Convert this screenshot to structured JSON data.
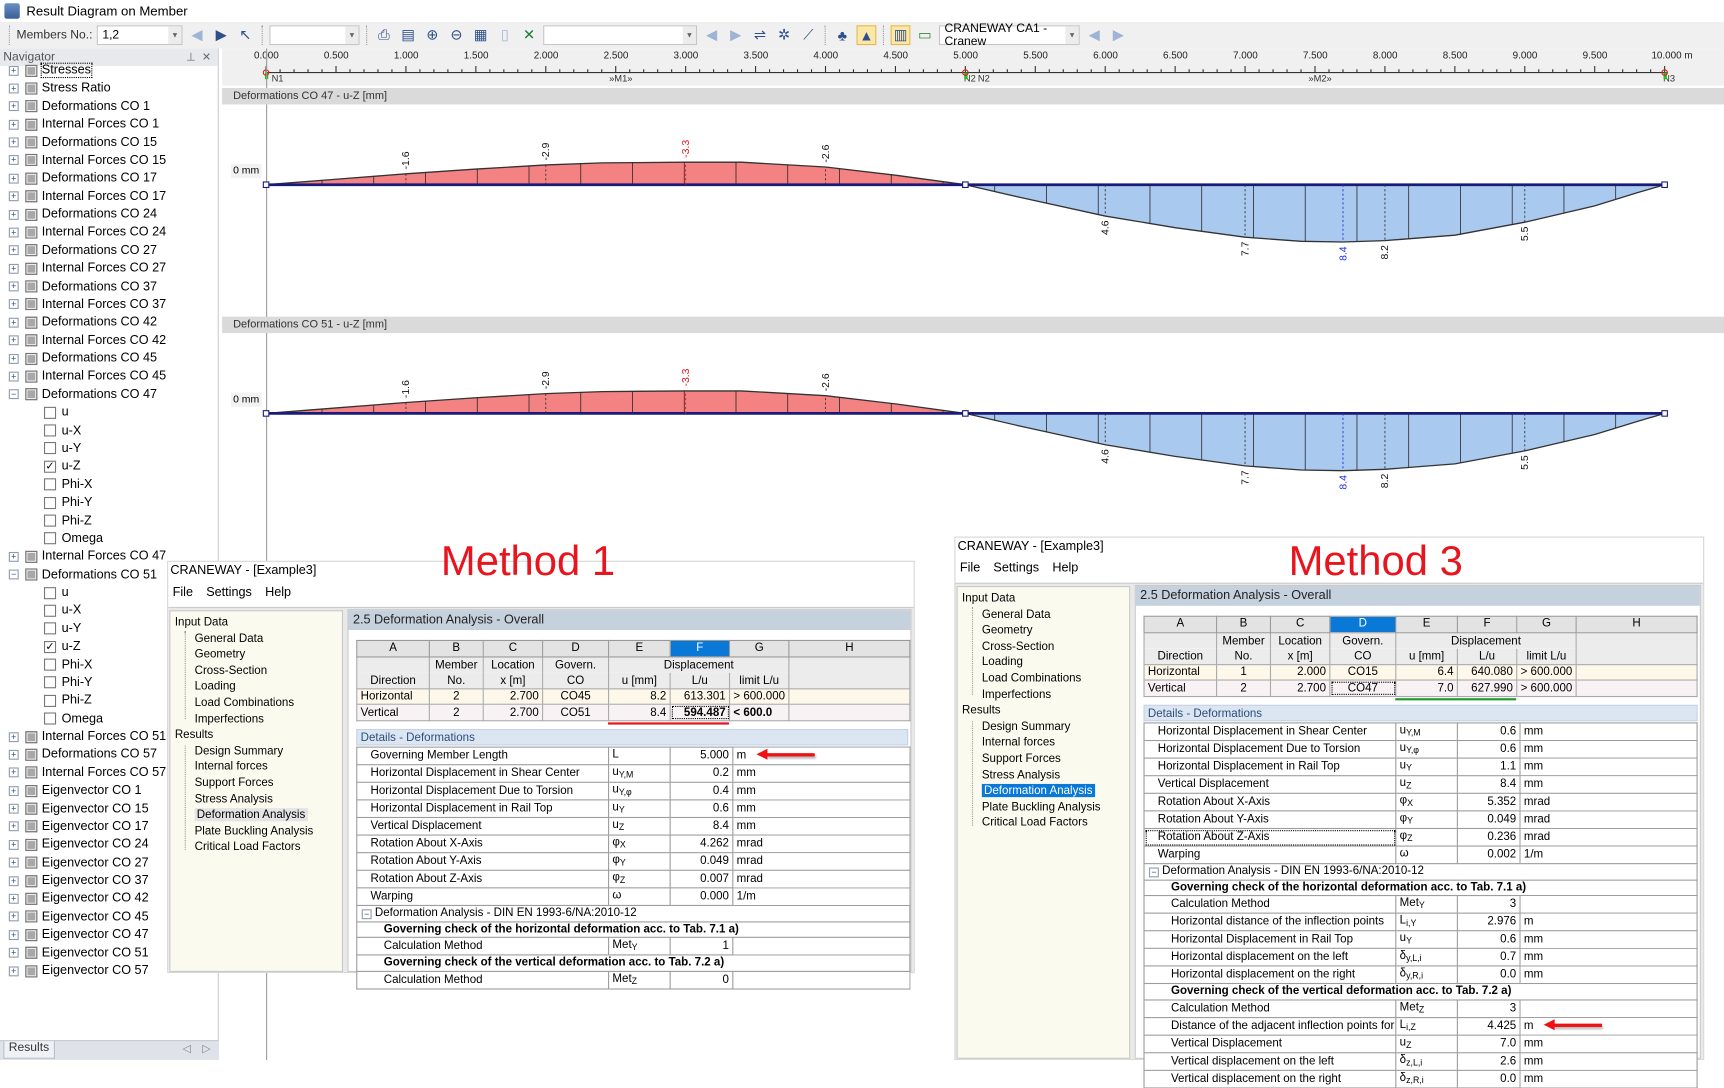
{
  "window": {
    "title": "Result Diagram on Member"
  },
  "toolbar": {
    "members_label": "Members No.:",
    "members_value": "1,2",
    "combo_2_value": "",
    "combo_3_value": "",
    "craneway_combo": "CRANEWAY CA1 - Cranew"
  },
  "navigator": {
    "title": "Navigator",
    "bottom_tab": "Results",
    "items": [
      {
        "label": "Stresses",
        "level": 0,
        "exp": "+"
      },
      {
        "label": "Stress Ratio",
        "level": 0,
        "exp": "+"
      },
      {
        "label": "Deformations CO 1",
        "level": 0,
        "exp": "+"
      },
      {
        "label": "Internal Forces CO 1",
        "level": 0,
        "exp": "+"
      },
      {
        "label": "Deformations CO 15",
        "level": 0,
        "exp": "+"
      },
      {
        "label": "Internal Forces CO 15",
        "level": 0,
        "exp": "+"
      },
      {
        "label": "Deformations CO 17",
        "level": 0,
        "exp": "+"
      },
      {
        "label": "Internal Forces CO 17",
        "level": 0,
        "exp": "+"
      },
      {
        "label": "Deformations CO 24",
        "level": 0,
        "exp": "+"
      },
      {
        "label": "Internal Forces CO 24",
        "level": 0,
        "exp": "+"
      },
      {
        "label": "Deformations CO 27",
        "level": 0,
        "exp": "+"
      },
      {
        "label": "Internal Forces CO 27",
        "level": 0,
        "exp": "+"
      },
      {
        "label": "Deformations CO 37",
        "level": 0,
        "exp": "+"
      },
      {
        "label": "Internal Forces CO 37",
        "level": 0,
        "exp": "+"
      },
      {
        "label": "Deformations CO 42",
        "level": 0,
        "exp": "+"
      },
      {
        "label": "Internal Forces CO 42",
        "level": 0,
        "exp": "+"
      },
      {
        "label": "Deformations CO 45",
        "level": 0,
        "exp": "+"
      },
      {
        "label": "Internal Forces CO 45",
        "level": 0,
        "exp": "+"
      },
      {
        "label": "Deformations CO 47",
        "level": 0,
        "exp": "−"
      },
      {
        "label": "u",
        "level": 1,
        "checked": false
      },
      {
        "label": "u-X",
        "level": 1,
        "checked": false
      },
      {
        "label": "u-Y",
        "level": 1,
        "checked": false
      },
      {
        "label": "u-Z",
        "level": 1,
        "checked": true
      },
      {
        "label": "Phi-X",
        "level": 1,
        "checked": false
      },
      {
        "label": "Phi-Y",
        "level": 1,
        "checked": false
      },
      {
        "label": "Phi-Z",
        "level": 1,
        "checked": false
      },
      {
        "label": "Omega",
        "level": 1,
        "checked": false
      },
      {
        "label": "Internal Forces CO 47",
        "level": 0,
        "exp": "+"
      },
      {
        "label": "Deformations CO 51",
        "level": 0,
        "exp": "−"
      },
      {
        "label": "u",
        "level": 1,
        "checked": false
      },
      {
        "label": "u-X",
        "level": 1,
        "checked": false
      },
      {
        "label": "u-Y",
        "level": 1,
        "checked": false
      },
      {
        "label": "u-Z",
        "level": 1,
        "checked": true
      },
      {
        "label": "Phi-X",
        "level": 1,
        "checked": false
      },
      {
        "label": "Phi-Y",
        "level": 1,
        "checked": false
      },
      {
        "label": "Phi-Z",
        "level": 1,
        "checked": false
      },
      {
        "label": "Omega",
        "level": 1,
        "checked": false
      },
      {
        "label": "Internal Forces CO 51",
        "level": 0,
        "exp": "+"
      },
      {
        "label": "Deformations CO 57",
        "level": 0,
        "exp": "+"
      },
      {
        "label": "Internal Forces CO 57",
        "level": 0,
        "exp": "+"
      },
      {
        "label": "Eigenvector CO 1",
        "level": 0,
        "exp": "+"
      },
      {
        "label": "Eigenvector CO 15",
        "level": 0,
        "exp": "+"
      },
      {
        "label": "Eigenvector CO 17",
        "level": 0,
        "exp": "+"
      },
      {
        "label": "Eigenvector CO 24",
        "level": 0,
        "exp": "+"
      },
      {
        "label": "Eigenvector CO 27",
        "level": 0,
        "exp": "+"
      },
      {
        "label": "Eigenvector CO 37",
        "level": 0,
        "exp": "+"
      },
      {
        "label": "Eigenvector CO 42",
        "level": 0,
        "exp": "+"
      },
      {
        "label": "Eigenvector CO 45",
        "level": 0,
        "exp": "+"
      },
      {
        "label": "Eigenvector CO 47",
        "level": 0,
        "exp": "+"
      },
      {
        "label": "Eigenvector CO 51",
        "level": 0,
        "exp": "+"
      },
      {
        "label": "Eigenvector CO 57",
        "level": 0,
        "exp": "+"
      }
    ]
  },
  "ruler": {
    "ticks": [
      "0.000",
      "0.500",
      "1.000",
      "1.500",
      "2.000",
      "2.500",
      "3.000",
      "3.500",
      "4.000",
      "4.500",
      "5.000",
      "5.500",
      "6.000",
      "6.500",
      "7.000",
      "7.500",
      "8.000",
      "8.500",
      "9.000",
      "9.500",
      "10.000 m"
    ],
    "nodes": [
      {
        "label": "N1",
        "x": 0
      },
      {
        "label": "»M1»",
        "x": 2.5
      },
      {
        "label": "N2",
        "x": 4.95
      },
      {
        "label": "N2",
        "x": 5.05
      },
      {
        "label": "»M2»",
        "x": 7.5
      },
      {
        "label": "N3",
        "x": 9.95
      }
    ]
  },
  "diagrams": [
    {
      "title": "Deformations CO 47 - u-Z [mm]",
      "zero_label": "0 mm"
    },
    {
      "title": "Deformations CO 51 - u-Z [mm]",
      "zero_label": "0 mm"
    }
  ],
  "diagram_curve": {
    "x_unit": "m",
    "points": [
      [
        0,
        0
      ],
      [
        0.5,
        -0.8
      ],
      [
        1,
        -1.6
      ],
      [
        1.5,
        -2.3
      ],
      [
        2,
        -2.9
      ],
      [
        2.4,
        -3.2
      ],
      [
        3,
        -3.3
      ],
      [
        3.4,
        -3.3
      ],
      [
        4,
        -2.6
      ],
      [
        4.5,
        -1.4
      ],
      [
        5,
        0
      ],
      [
        5.4,
        1.9
      ],
      [
        6,
        4.6
      ],
      [
        6.5,
        6.3
      ],
      [
        7,
        7.7
      ],
      [
        7.4,
        8.3
      ],
      [
        7.7,
        8.4
      ],
      [
        8,
        8.2
      ],
      [
        8.5,
        7.4
      ],
      [
        9,
        5.5
      ],
      [
        9.5,
        3.1
      ],
      [
        9.8,
        1.2
      ],
      [
        10,
        0
      ]
    ],
    "labels": [
      {
        "x": 1,
        "value": "-1.6"
      },
      {
        "x": 2,
        "value": "-2.9"
      },
      {
        "x": 3,
        "value": "-3.3"
      },
      {
        "x": 4,
        "value": "-2.6"
      },
      {
        "x": 6,
        "value": "4.6"
      },
      {
        "x": 7,
        "value": "7.7"
      },
      {
        "x": 7.7,
        "value": "8.4"
      },
      {
        "x": 8,
        "value": "8.2"
      },
      {
        "x": 9,
        "value": "5.5"
      }
    ],
    "colors": {
      "negative_fill": "#f48282",
      "positive_fill": "#a9c9ee",
      "member_line": "#1a1a7a",
      "min_label": "#e8141e",
      "max_label": "#1a2ee0"
    }
  },
  "annotations": {
    "method1": "Method 1",
    "method3": "Method 3",
    "method1_underline": "#e8141e",
    "method3_underline": "#1f9a2e"
  },
  "windows": [
    {
      "title": "CRANEWAY - [Example3]",
      "menu": [
        "File",
        "Settings",
        "Help"
      ],
      "tree": [
        {
          "label": "Input Data",
          "level": 0
        },
        {
          "label": "General Data",
          "level": 1
        },
        {
          "label": "Geometry",
          "level": 1
        },
        {
          "label": "Cross-Section",
          "level": 1
        },
        {
          "label": "Loading",
          "level": 1
        },
        {
          "label": "Load Combinations",
          "level": 1
        },
        {
          "label": "Imperfections",
          "level": 1
        },
        {
          "label": "Results",
          "level": 0
        },
        {
          "label": "Design Summary",
          "level": 1
        },
        {
          "label": "Internal forces",
          "level": 1
        },
        {
          "label": "Support Forces",
          "level": 1
        },
        {
          "label": "Stress Analysis",
          "level": 1
        },
        {
          "label": "Deformation Analysis",
          "level": 1,
          "state": "hl"
        },
        {
          "label": "Plate Buckling Analysis",
          "level": 1
        },
        {
          "label": "Critical Load Factors",
          "level": 1
        }
      ],
      "panel_title": "2.5 Deformation Analysis - Overall",
      "columns": [
        "A",
        "B",
        "C",
        "D",
        "E",
        "F",
        "G",
        "H"
      ],
      "selected_column": "F",
      "headers": {
        "direction": "Direction",
        "member_1": "Member",
        "member_2": "No.",
        "loc_1": "Location",
        "loc_2": "x [m]",
        "co_1": "Govern.",
        "co_2": "CO",
        "disp": "Displacement",
        "u": "u [mm]",
        "lu": "L/u",
        "limit": "limit L/u"
      },
      "rows": [
        {
          "direction": "Horizontal",
          "member": "2",
          "x": "2.700",
          "co": "CO45",
          "u": "8.2",
          "lu": "613.301",
          "limit": "> 600.000"
        },
        {
          "direction": "Vertical",
          "member": "2",
          "x": "2.700",
          "co": "CO51",
          "u": "8.4",
          "lu": "594.487",
          "limit": "< 600.0",
          "bold": true,
          "focus": "lu"
        }
      ],
      "details_title": "Details - Deformations",
      "details": [
        {
          "type": "row",
          "name": "Governing Member Length",
          "sym": "L",
          "sub": "",
          "value": "5.000",
          "unit": "m",
          "arrow": true
        },
        {
          "type": "row",
          "name": "Horizontal Displacement in Shear Center",
          "sym": "u",
          "sub": "Y,M",
          "value": "0.2",
          "unit": "mm"
        },
        {
          "type": "row",
          "name": "Horizontal Displacement Due to Torsion",
          "sym": "u",
          "sub": "Y,φ",
          "value": "0.4",
          "unit": "mm"
        },
        {
          "type": "row",
          "name": "Horizontal Displacement in Rail Top",
          "sym": "u",
          "sub": "Y",
          "value": "0.6",
          "unit": "mm"
        },
        {
          "type": "row",
          "name": "Vertical Displacement",
          "sym": "u",
          "sub": "Z",
          "value": "8.4",
          "unit": "mm"
        },
        {
          "type": "row",
          "name": "Rotation About X-Axis",
          "sym": "φ",
          "sub": "X",
          "value": "4.262",
          "unit": "mrad"
        },
        {
          "type": "row",
          "name": "Rotation About Y-Axis",
          "sym": "φ",
          "sub": "Y",
          "value": "0.049",
          "unit": "mrad"
        },
        {
          "type": "row",
          "name": "Rotation About Z-Axis",
          "sym": "φ",
          "sub": "Z",
          "value": "0.007",
          "unit": "mrad"
        },
        {
          "type": "row",
          "name": "Warping",
          "sym": "ω",
          "sub": "",
          "value": "0.000",
          "unit": "1/m"
        },
        {
          "type": "group",
          "name": "Deformation Analysis - DIN EN 1993-6/NA:2010-12"
        },
        {
          "type": "heading",
          "name": "Governing check of the horizontal deformation acc. to Tab. 7.1 a)"
        },
        {
          "type": "sub",
          "name": "Calculation Method",
          "sym": "Met",
          "sub": "Y",
          "value": "1",
          "unit": ""
        },
        {
          "type": "heading",
          "name": "Governing check of the vertical deformation acc. to Tab. 7.2 a)"
        },
        {
          "type": "sub",
          "name": "Calculation Method",
          "sym": "Met",
          "sub": "Z",
          "value": "0",
          "unit": ""
        }
      ]
    },
    {
      "title": "CRANEWAY - [Example3]",
      "menu": [
        "File",
        "Settings",
        "Help"
      ],
      "tree": [
        {
          "label": "Input Data",
          "level": 0
        },
        {
          "label": "General Data",
          "level": 1
        },
        {
          "label": "Geometry",
          "level": 1
        },
        {
          "label": "Cross-Section",
          "level": 1
        },
        {
          "label": "Loading",
          "level": 1
        },
        {
          "label": "Load Combinations",
          "level": 1
        },
        {
          "label": "Imperfections",
          "level": 1
        },
        {
          "label": "Results",
          "level": 0
        },
        {
          "label": "Design Summary",
          "level": 1
        },
        {
          "label": "Internal forces",
          "level": 1
        },
        {
          "label": "Support Forces",
          "level": 1
        },
        {
          "label": "Stress Analysis",
          "level": 1
        },
        {
          "label": "Deformation Analysis",
          "level": 1,
          "state": "sel"
        },
        {
          "label": "Plate Buckling Analysis",
          "level": 1
        },
        {
          "label": "Critical Load Factors",
          "level": 1
        }
      ],
      "panel_title": "2.5 Deformation Analysis - Overall",
      "columns": [
        "A",
        "B",
        "C",
        "D",
        "E",
        "F",
        "G",
        "H"
      ],
      "selected_column": "D",
      "headers": {
        "direction": "Direction",
        "member_1": "Member",
        "member_2": "No.",
        "loc_1": "Location",
        "loc_2": "x [m]",
        "co_1": "Govern.",
        "co_2": "CO",
        "disp": "Displacement",
        "u": "u [mm]",
        "lu": "L/u",
        "limit": "limit L/u"
      },
      "rows": [
        {
          "direction": "Horizontal",
          "member": "1",
          "x": "2.000",
          "co": "CO15",
          "u": "6.4",
          "lu": "640.080",
          "limit": "> 600.000"
        },
        {
          "direction": "Vertical",
          "member": "2",
          "x": "2.700",
          "co": "CO47",
          "u": "7.0",
          "lu": "627.990",
          "limit": "> 600.000",
          "focus": "co"
        }
      ],
      "details_title": "Details - Deformations",
      "details": [
        {
          "type": "row",
          "name": "Horizontal Displacement in Shear Center",
          "sym": "u",
          "sub": "Y,M",
          "value": "0.6",
          "unit": "mm"
        },
        {
          "type": "row",
          "name": "Horizontal Displacement Due to Torsion",
          "sym": "u",
          "sub": "Y,φ",
          "value": "0.6",
          "unit": "mm"
        },
        {
          "type": "row",
          "name": "Horizontal Displacement in Rail Top",
          "sym": "u",
          "sub": "Y",
          "value": "1.1",
          "unit": "mm"
        },
        {
          "type": "row",
          "name": "Vertical Displacement",
          "sym": "u",
          "sub": "Z",
          "value": "8.4",
          "unit": "mm"
        },
        {
          "type": "row",
          "name": "Rotation About X-Axis",
          "sym": "φ",
          "sub": "X",
          "value": "5.352",
          "unit": "mrad"
        },
        {
          "type": "row",
          "name": "Rotation About Y-Axis",
          "sym": "φ",
          "sub": "Y",
          "value": "0.049",
          "unit": "mrad"
        },
        {
          "type": "row",
          "name": "Rotation About Z-Axis",
          "sym": "φ",
          "sub": "Z",
          "value": "0.236",
          "unit": "mrad",
          "focus": true
        },
        {
          "type": "row",
          "name": "Warping",
          "sym": "ω",
          "sub": "",
          "value": "0.002",
          "unit": "1/m"
        },
        {
          "type": "group",
          "name": "Deformation Analysis - DIN EN 1993-6/NA:2010-12"
        },
        {
          "type": "heading",
          "name": "Governing check of the horizontal deformation acc. to Tab. 7.1 a)"
        },
        {
          "type": "sub",
          "name": "Calculation Method",
          "sym": "Met",
          "sub": "Y",
          "value": "3",
          "unit": ""
        },
        {
          "type": "sub",
          "name": "Horizontal distance of the inflection points",
          "sym": "L",
          "sub": "i,Y",
          "value": "2.976",
          "unit": "m"
        },
        {
          "type": "sub",
          "name": "Horizontal Displacement in Rail Top",
          "sym": "u",
          "sub": "Y",
          "value": "0.6",
          "unit": "mm"
        },
        {
          "type": "sub",
          "name": "Horizontal displacement on the left",
          "sym": "δ",
          "sub": "y,L,i",
          "value": "0.7",
          "unit": "mm"
        },
        {
          "type": "sub",
          "name": "Horizontal displacement on the right",
          "sym": "δ",
          "sub": "y,R,i",
          "value": "0.0",
          "unit": "mm"
        },
        {
          "type": "heading",
          "name": "Governing check of the vertical deformation acc. to Tab. 7.2 a)"
        },
        {
          "type": "sub",
          "name": "Calculation Method",
          "sym": "Met",
          "sub": "Z",
          "value": "3",
          "unit": ""
        },
        {
          "type": "sub",
          "name": "Distance of the adjacent inflection points for uz",
          "sym": "L",
          "sub": "i,Z",
          "value": "4.425",
          "unit": "m",
          "arrow": true
        },
        {
          "type": "sub",
          "name": "Vertical Displacement",
          "sym": "u",
          "sub": "Z",
          "value": "7.0",
          "unit": "mm"
        },
        {
          "type": "sub",
          "name": "Vertical displacement on the left",
          "sym": "δ",
          "sub": "z,L,i",
          "value": "2.6",
          "unit": "mm"
        },
        {
          "type": "sub",
          "name": "Vertical displacement on the right",
          "sym": "δ",
          "sub": "z,R,i",
          "value": "0.0",
          "unit": "mm"
        }
      ]
    }
  ]
}
